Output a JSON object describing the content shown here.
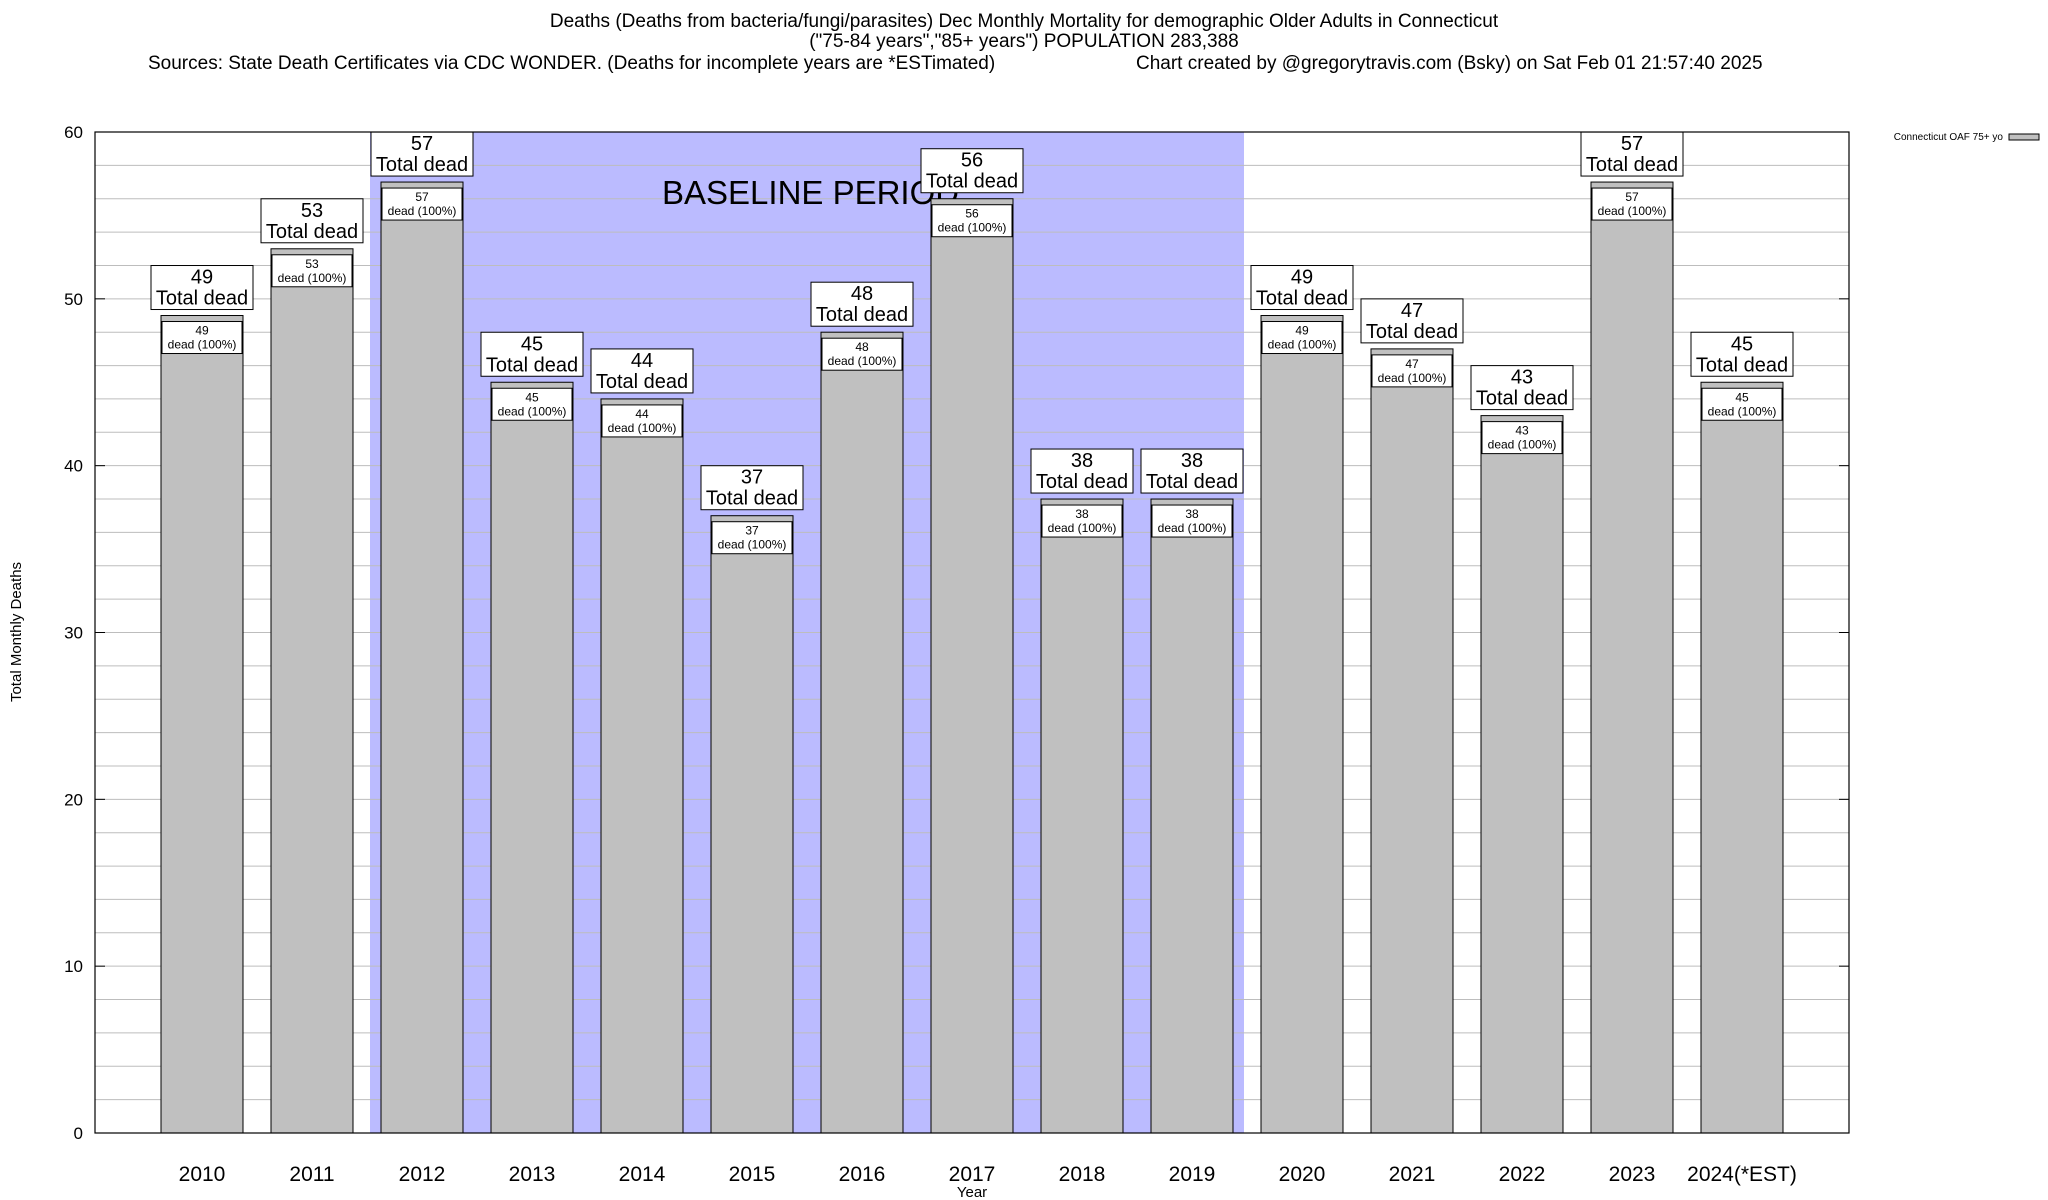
{
  "chart_data": {
    "type": "bar",
    "title": "Deaths (Deaths from bacteria/fungi/parasites) Dec Monthly Mortality for demographic Older Adults in Connecticut",
    "subtitle": "(\"75-84 years\",\"85+ years\") POPULATION 283,388",
    "sources": "Sources: State Death Certificates via CDC WONDER. (Deaths for incomplete years are *ESTimated)",
    "credit": "Chart created by @gregorytravis.com (Bsky) on Sat Feb 01 21:57:40 2025",
    "xlabel": "Year",
    "ylabel": "Total Monthly Deaths",
    "ylim": [
      0,
      60
    ],
    "yticks": [
      0,
      10,
      20,
      30,
      40,
      50,
      60
    ],
    "grid": true,
    "minor_grid_step": 2,
    "categories": [
      "2010",
      "2011",
      "2012",
      "2013",
      "2014",
      "2015",
      "2016",
      "2017",
      "2018",
      "2019",
      "2020",
      "2021",
      "2022",
      "2023",
      "2024(*EST)"
    ],
    "series": [
      {
        "name": "Connecticut OAF 75+ yo",
        "color": "#c0c0c0",
        "values": [
          49,
          53,
          57,
          45,
          44,
          37,
          48,
          56,
          38,
          38,
          49,
          47,
          43,
          57,
          45
        ]
      }
    ],
    "bar_label_top": "Total dead",
    "bar_label_inner": "dead (100%)",
    "legend_position": "top-right",
    "baseline_period": {
      "label": "BASELINE PERIOD",
      "from": "2012",
      "to": "2019",
      "color": "#bbbbff"
    }
  }
}
